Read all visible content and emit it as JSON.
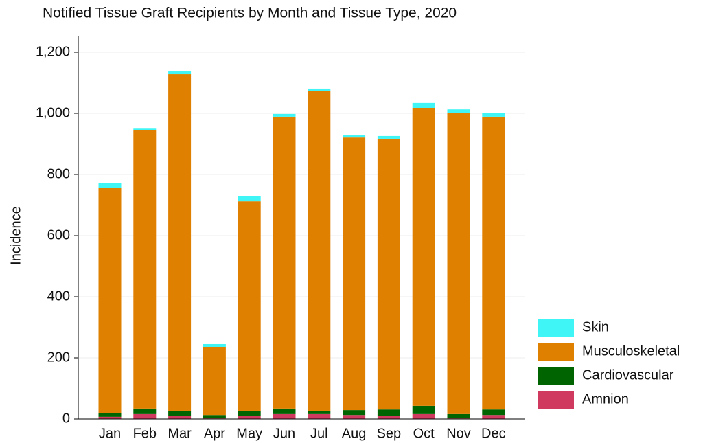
{
  "chart_data": {
    "type": "stacked_bar",
    "title": "Notified Tissue Graft Recipients by Month and Tissue Type, 2020",
    "y_label": "Incidence",
    "categories": [
      "Jan",
      "Feb",
      "Mar",
      "Apr",
      "May",
      "Jun",
      "Jul",
      "Aug",
      "Sep",
      "Oct",
      "Nov",
      "Dec"
    ],
    "series": [
      {
        "name": "Amnion",
        "color": "#d03a5f",
        "values": [
          7,
          16,
          11,
          2,
          9,
          16,
          16,
          13,
          9,
          16,
          2,
          13
        ]
      },
      {
        "name": "Cardiovascular",
        "color": "#006400",
        "values": [
          13,
          18,
          16,
          11,
          18,
          18,
          11,
          16,
          22,
          27,
          14,
          18
        ]
      },
      {
        "name": "Musculoskeletal",
        "color": "#e08000",
        "values": [
          737,
          910,
          1101,
          223,
          685,
          955,
          1045,
          892,
          886,
          975,
          984,
          958
        ]
      },
      {
        "name": "Skin",
        "color": "#3ff5f5",
        "values": [
          16,
          6,
          9,
          9,
          18,
          9,
          9,
          7,
          9,
          16,
          13,
          13
        ]
      }
    ],
    "ylim": [
      0,
      1200
    ],
    "yticks": [
      0,
      200,
      400,
      600,
      800,
      {
        "value": 1000,
        "label": "1,000"
      },
      {
        "value": 1200,
        "label": "1,200"
      }
    ],
    "grid": true,
    "legend": "right"
  }
}
